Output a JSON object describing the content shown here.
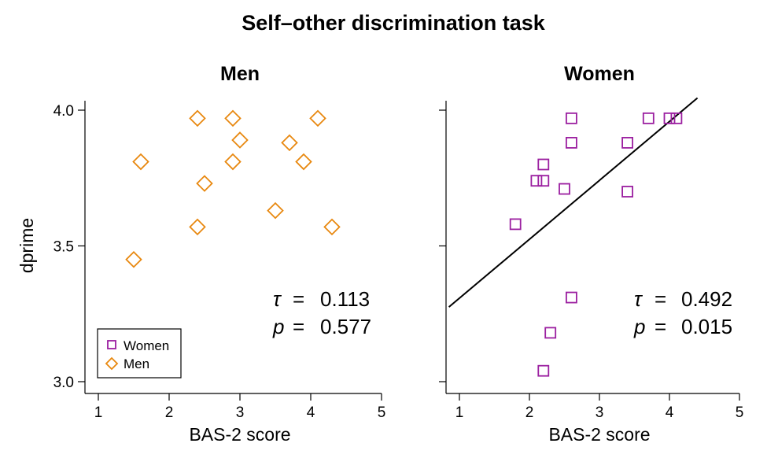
{
  "chart_data": {
    "type": "scatter",
    "title": "Self–other discrimination task",
    "ylabel": "dprime",
    "ylim": [
      3.0,
      4.0
    ],
    "yticks": [
      "3.0",
      "3.5",
      "4.0"
    ],
    "legend": {
      "position": "bottom-left",
      "entries": [
        {
          "name": "Women",
          "marker": "square",
          "color": "#9b1fa0"
        },
        {
          "name": "Men",
          "marker": "diamond",
          "color": "#e8880f"
        }
      ]
    },
    "panels": [
      {
        "title": "Men",
        "xlabel": "BAS-2 score",
        "xlim": [
          1,
          5
        ],
        "xticks": [
          "1",
          "2",
          "3",
          "4",
          "5"
        ],
        "marker": "diamond",
        "color": "#e8880f",
        "points": [
          {
            "x": 1.5,
            "y": 3.45
          },
          {
            "x": 1.6,
            "y": 3.81
          },
          {
            "x": 2.4,
            "y": 3.97
          },
          {
            "x": 2.4,
            "y": 3.57
          },
          {
            "x": 2.5,
            "y": 3.73
          },
          {
            "x": 2.9,
            "y": 3.97
          },
          {
            "x": 2.9,
            "y": 3.81
          },
          {
            "x": 3.0,
            "y": 3.89
          },
          {
            "x": 3.5,
            "y": 3.63
          },
          {
            "x": 3.7,
            "y": 3.88
          },
          {
            "x": 3.9,
            "y": 3.81
          },
          {
            "x": 4.1,
            "y": 3.97
          },
          {
            "x": 4.3,
            "y": 3.57
          }
        ],
        "tau_symbol": "τ",
        "tau_eq": "=",
        "tau_value": "0.113",
        "p_symbol": "p",
        "p_eq": "=",
        "p_value": "0.577",
        "fit_line": null
      },
      {
        "title": "Women",
        "xlabel": "BAS-2 score",
        "xlim": [
          1,
          5
        ],
        "xticks": [
          "1",
          "2",
          "3",
          "4",
          "5"
        ],
        "marker": "square",
        "color": "#9b1fa0",
        "points": [
          {
            "x": 1.8,
            "y": 3.58
          },
          {
            "x": 2.1,
            "y": 3.74
          },
          {
            "x": 2.2,
            "y": 3.74
          },
          {
            "x": 2.2,
            "y": 3.8
          },
          {
            "x": 2.2,
            "y": 3.04
          },
          {
            "x": 2.3,
            "y": 3.18
          },
          {
            "x": 2.5,
            "y": 3.71
          },
          {
            "x": 2.6,
            "y": 3.97
          },
          {
            "x": 2.6,
            "y": 3.88
          },
          {
            "x": 2.6,
            "y": 3.31
          },
          {
            "x": 3.4,
            "y": 3.88
          },
          {
            "x": 3.4,
            "y": 3.7
          },
          {
            "x": 3.7,
            "y": 3.97
          },
          {
            "x": 4.0,
            "y": 3.97
          },
          {
            "x": 4.1,
            "y": 3.97
          }
        ],
        "tau_symbol": "τ",
        "tau_eq": "=",
        "tau_value": "0.492",
        "p_symbol": "p",
        "p_eq": "=",
        "p_value": "0.015",
        "fit_line": {
          "x0": 0.85,
          "y0": 3.275,
          "x1": 4.4,
          "y1": 4.045,
          "color": "#000000"
        }
      }
    ]
  }
}
